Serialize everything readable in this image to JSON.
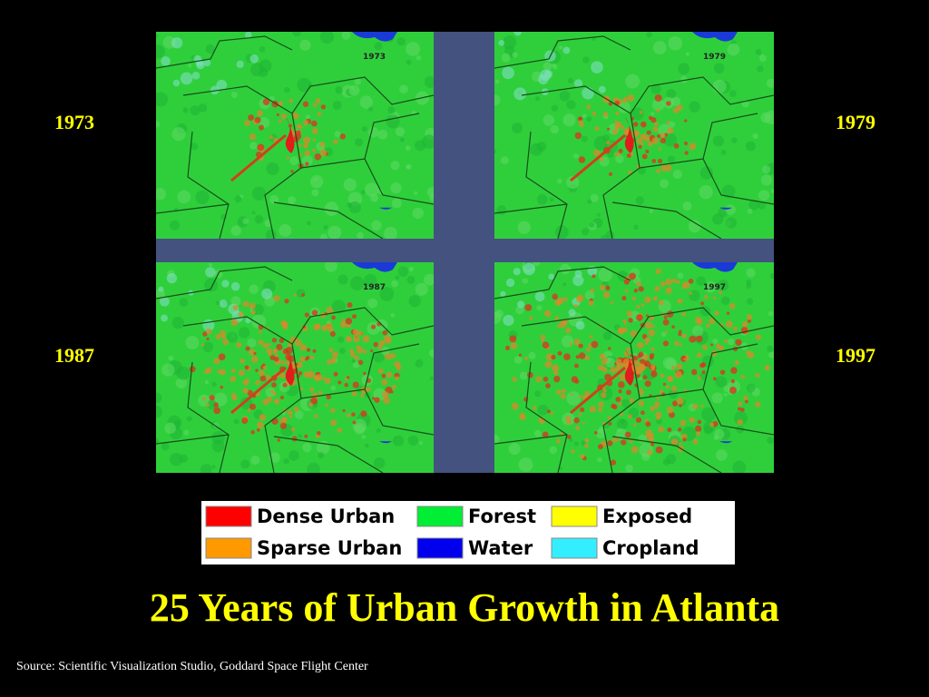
{
  "title": "25 Years of Urban Growth in Atlanta",
  "source": "Source:  Scientific Visualization Studio, Goddard Space Flight Center",
  "panels": [
    {
      "label": "1973",
      "map_label": "1973"
    },
    {
      "label": "1979",
      "map_label": "1979"
    },
    {
      "label": "1987",
      "map_label": "1987"
    },
    {
      "label": "1997",
      "map_label": "1997"
    }
  ],
  "legend": [
    {
      "label": "Dense Urban",
      "color": "#ff0000"
    },
    {
      "label": "Sparse Urban",
      "color": "#ff9900"
    },
    {
      "label": "Forest",
      "color": "#00ee33"
    },
    {
      "label": "Water",
      "color": "#0000ee"
    },
    {
      "label": "Exposed",
      "color": "#ffff00"
    },
    {
      "label": "Cropland",
      "color": "#33eeff"
    }
  ]
}
